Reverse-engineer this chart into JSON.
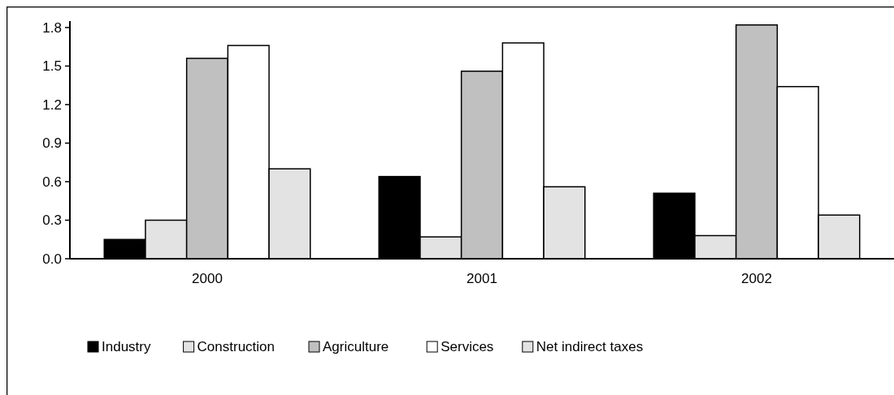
{
  "chart_data": {
    "type": "bar",
    "categories": [
      "2000",
      "2001",
      "2002"
    ],
    "series": [
      {
        "name": "Industry",
        "color": "#000000",
        "values": [
          0.15,
          0.64,
          0.51
        ]
      },
      {
        "name": "Construction",
        "color": "#e3e3e3",
        "values": [
          0.3,
          0.17,
          0.18
        ]
      },
      {
        "name": "Agriculture",
        "color": "#c0c0c0",
        "values": [
          1.56,
          1.46,
          1.82
        ]
      },
      {
        "name": "Services",
        "color": "#ffffff",
        "values": [
          1.66,
          1.68,
          1.34
        ]
      },
      {
        "name": "Net indirect taxes",
        "color": "#e3e3e3",
        "values": [
          0.7,
          0.56,
          0.34
        ]
      }
    ],
    "ylim": [
      0,
      1.85
    ],
    "yticks": [
      {
        "value": 0,
        "label": "0.0"
      },
      0.3,
      0.6,
      0.9,
      1.2,
      1.5,
      1.8
    ],
    "grid": false,
    "legend": "bottom"
  }
}
